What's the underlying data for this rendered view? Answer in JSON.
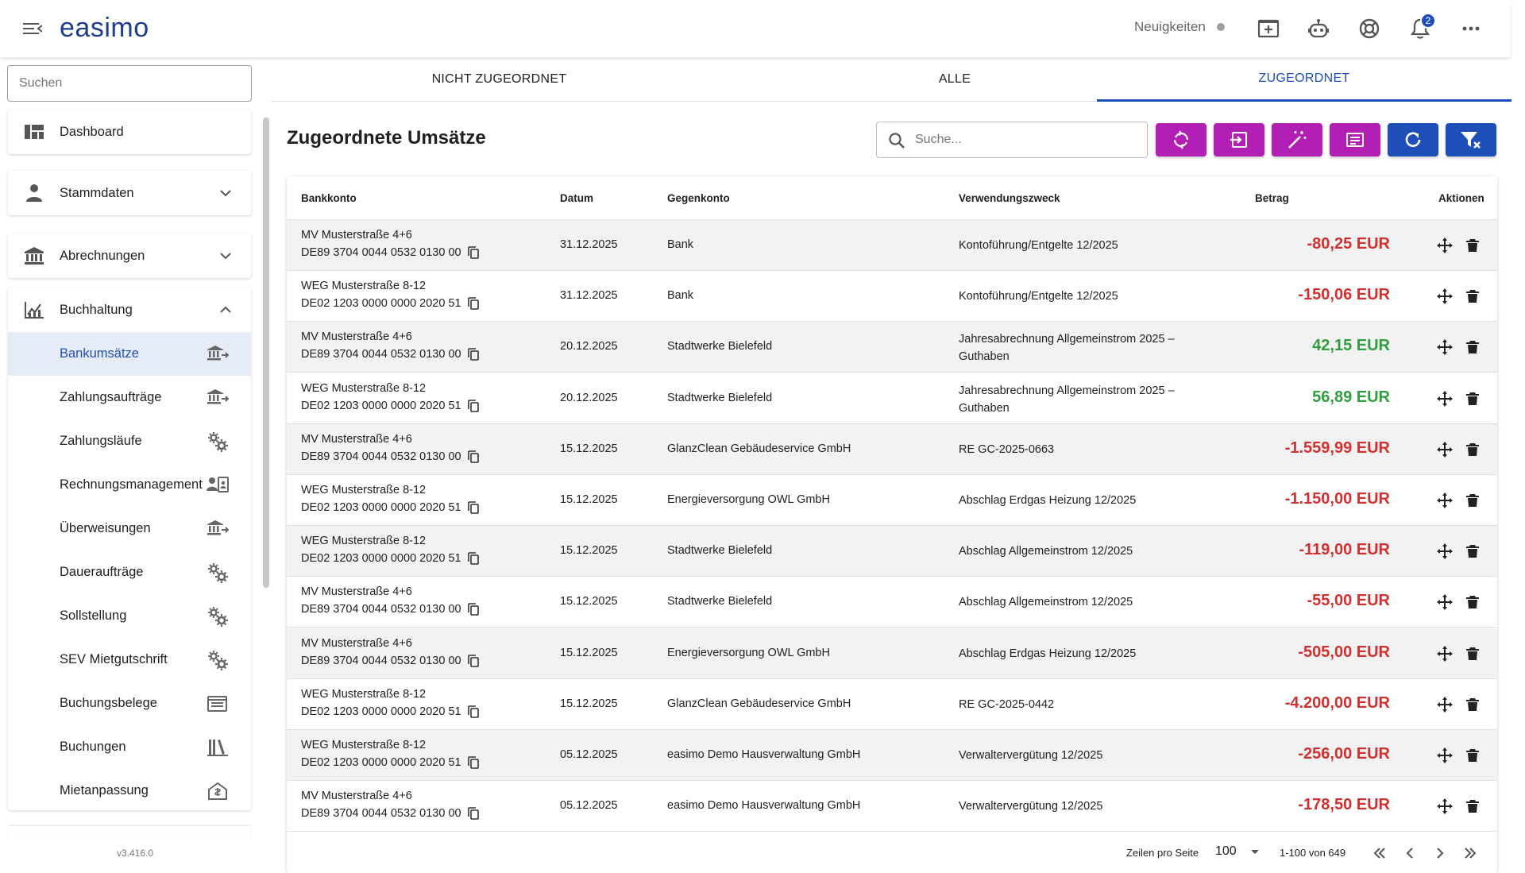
{
  "header": {
    "logo": "easimo",
    "news_label": "Neuigkeiten",
    "notification_count": "2"
  },
  "sidebar": {
    "search_placeholder": "Suchen",
    "dashboard": "Dashboard",
    "stammdaten": "Stammdaten",
    "abrechnungen": "Abrechnungen",
    "buchhaltung": "Buchhaltung",
    "sub_items": [
      {
        "label": "Bankumsätze",
        "icon": "bank-icon",
        "active": true
      },
      {
        "label": "Zahlungsaufträge",
        "icon": "bank-icon"
      },
      {
        "label": "Zahlungsläufe",
        "icon": "gears-icon"
      },
      {
        "label": "Rechnungsmanagement",
        "icon": "contact-card-icon"
      },
      {
        "label": "Überweisungen",
        "icon": "bank-icon"
      },
      {
        "label": "Daueraufträge",
        "icon": "gears-icon"
      },
      {
        "label": "Sollstellung",
        "icon": "gears-icon"
      },
      {
        "label": "SEV Mietgutschrift",
        "icon": "gears-icon"
      },
      {
        "label": "Buchungsbelege",
        "icon": "document-icon"
      },
      {
        "label": "Buchungen",
        "icon": "library-icon"
      },
      {
        "label": "Mietanpassung",
        "icon": "home-icon"
      }
    ],
    "version": "v3.416.0"
  },
  "tabs": {
    "not_assigned": "NICHT ZUGEORDNET",
    "all": "ALLE",
    "assigned": "ZUGEORDNET"
  },
  "main": {
    "title": "Zugeordnete Umsätze",
    "search_placeholder": "Suche..."
  },
  "colors": {
    "primary": "#1e4fb8",
    "accent": "#b11fb4",
    "negative": "#d32f2f",
    "positive": "#2e9e3e"
  },
  "table": {
    "headers": {
      "bankkonto": "Bankkonto",
      "datum": "Datum",
      "gegenkonto": "Gegenkonto",
      "zweck": "Verwendungszweck",
      "betrag": "Betrag",
      "aktionen": "Aktionen"
    },
    "rows": [
      {
        "konto": "MV Musterstraße 4+6",
        "iban": "DE89 3704 0044 0532 0130 00",
        "datum": "31.12.2025",
        "gegen": "Bank",
        "zweck": "Kontoführung/Entgelte 12/2025",
        "betrag": "-80,25 EUR",
        "sign": "neg"
      },
      {
        "konto": "WEG Musterstraße 8-12",
        "iban": "DE02 1203 0000 0000 2020 51",
        "datum": "31.12.2025",
        "gegen": "Bank",
        "zweck": "Kontoführung/Entgelte 12/2025",
        "betrag": "-150,06 EUR",
        "sign": "neg"
      },
      {
        "konto": "MV Musterstraße 4+6",
        "iban": "DE89 3704 0044 0532 0130 00",
        "datum": "20.12.2025",
        "gegen": "Stadtwerke Bielefeld",
        "zweck": "Jahresabrechnung Allgemeinstrom 2025 – Guthaben",
        "betrag": "42,15 EUR",
        "sign": "pos"
      },
      {
        "konto": "WEG Musterstraße 8-12",
        "iban": "DE02 1203 0000 0000 2020 51",
        "datum": "20.12.2025",
        "gegen": "Stadtwerke Bielefeld",
        "zweck": "Jahresabrechnung Allgemeinstrom 2025 – Guthaben",
        "betrag": "56,89 EUR",
        "sign": "pos"
      },
      {
        "konto": "MV Musterstraße 4+6",
        "iban": "DE89 3704 0044 0532 0130 00",
        "datum": "15.12.2025",
        "gegen": "GlanzClean Gebäudeservice GmbH",
        "zweck": "RE GC-2025-0663",
        "betrag": "-1.559,99 EUR",
        "sign": "neg"
      },
      {
        "konto": "WEG Musterstraße 8-12",
        "iban": "DE02 1203 0000 0000 2020 51",
        "datum": "15.12.2025",
        "gegen": "Energieversorgung OWL GmbH",
        "zweck": "Abschlag Erdgas Heizung 12/2025",
        "betrag": "-1.150,00 EUR",
        "sign": "neg"
      },
      {
        "konto": "WEG Musterstraße 8-12",
        "iban": "DE02 1203 0000 0000 2020 51",
        "datum": "15.12.2025",
        "gegen": "Stadtwerke Bielefeld",
        "zweck": "Abschlag Allgemeinstrom 12/2025",
        "betrag": "-119,00 EUR",
        "sign": "neg"
      },
      {
        "konto": "MV Musterstraße 4+6",
        "iban": "DE89 3704 0044 0532 0130 00",
        "datum": "15.12.2025",
        "gegen": "Stadtwerke Bielefeld",
        "zweck": "Abschlag Allgemeinstrom 12/2025",
        "betrag": "-55,00 EUR",
        "sign": "neg"
      },
      {
        "konto": "MV Musterstraße 4+6",
        "iban": "DE89 3704 0044 0532 0130 00",
        "datum": "15.12.2025",
        "gegen": "Energieversorgung OWL GmbH",
        "zweck": "Abschlag Erdgas Heizung 12/2025",
        "betrag": "-505,00 EUR",
        "sign": "neg"
      },
      {
        "konto": "WEG Musterstraße 8-12",
        "iban": "DE02 1203 0000 0000 2020 51",
        "datum": "15.12.2025",
        "gegen": "GlanzClean Gebäudeservice GmbH",
        "zweck": "RE GC-2025-0442",
        "betrag": "-4.200,00 EUR",
        "sign": "neg"
      },
      {
        "konto": "WEG Musterstraße 8-12",
        "iban": "DE02 1203 0000 0000 2020 51",
        "datum": "05.12.2025",
        "gegen": "easimo Demo Hausverwaltung GmbH",
        "zweck": "Verwaltervergütung 12/2025",
        "betrag": "-256,00 EUR",
        "sign": "neg"
      },
      {
        "konto": "MV Musterstraße 4+6",
        "iban": "DE89 3704 0044 0532 0130 00",
        "datum": "05.12.2025",
        "gegen": "easimo Demo Hausverwaltung GmbH",
        "zweck": "Verwaltervergütung 12/2025",
        "betrag": "-178,50 EUR",
        "sign": "neg"
      }
    ]
  },
  "pagination": {
    "rows_per_page_label": "Zeilen pro Seite",
    "rows_per_page": "100",
    "range": "1-100 von 649"
  }
}
